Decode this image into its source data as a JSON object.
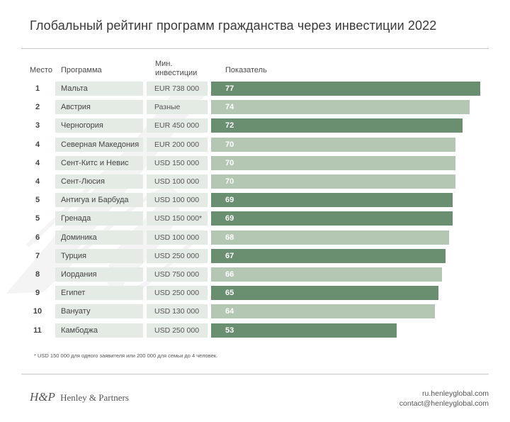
{
  "title": "Глобальный рейтинг программ гражданства через инвестиции 2022",
  "headers": {
    "rank": "Место",
    "program": "Программа",
    "investment": "Мин. инвестиции",
    "score": "Показатель"
  },
  "colors": {
    "bar_dark": "#6a8e70",
    "bar_light": "#b3c7b2",
    "cell_bg": "#e4eae4"
  },
  "chart_data": {
    "type": "bar",
    "title": "Глобальный рейтинг программ гражданства через инвестиции 2022",
    "xlabel": "Показатель",
    "ylabel": "Программа",
    "xlim": [
      0,
      80
    ],
    "rows": [
      {
        "rank": "1",
        "program": "Мальта",
        "investment": "EUR 738 000",
        "value": 77,
        "shade": "dark"
      },
      {
        "rank": "2",
        "program": "Австрия",
        "investment": "Разные",
        "value": 74,
        "shade": "light"
      },
      {
        "rank": "3",
        "program": "Черногория",
        "investment": "EUR 450 000",
        "value": 72,
        "shade": "dark"
      },
      {
        "rank": "4",
        "program": "Северная Македония",
        "investment": "EUR 200 000",
        "value": 70,
        "shade": "light"
      },
      {
        "rank": "4",
        "program": "Сент-Китс и Невис",
        "investment": "USD 150 000",
        "value": 70,
        "shade": "light"
      },
      {
        "rank": "4",
        "program": "Сент-Люсия",
        "investment": "USD 100 000",
        "value": 70,
        "shade": "light"
      },
      {
        "rank": "5",
        "program": "Антигуа и Барбуда",
        "investment": "USD 100 000",
        "value": 69,
        "shade": "dark"
      },
      {
        "rank": "5",
        "program": "Гренада",
        "investment": "USD 150 000*",
        "value": 69,
        "shade": "dark"
      },
      {
        "rank": "6",
        "program": "Доминика",
        "investment": "USD 100 000",
        "value": 68,
        "shade": "light"
      },
      {
        "rank": "7",
        "program": "Турция",
        "investment": "USD 250 000",
        "value": 67,
        "shade": "dark"
      },
      {
        "rank": "8",
        "program": "Иордания",
        "investment": "USD 750 000",
        "value": 66,
        "shade": "light"
      },
      {
        "rank": "9",
        "program": "Египет",
        "investment": "USD 250 000",
        "value": 65,
        "shade": "dark"
      },
      {
        "rank": "10",
        "program": "Вануату",
        "investment": "USD 130 000",
        "value": 64,
        "shade": "light"
      },
      {
        "rank": "11",
        "program": "Камбоджа",
        "investment": "USD 250 000",
        "value": 53,
        "shade": "dark"
      }
    ]
  },
  "footnote": "* USD 150 000 для одного заявителя или 200 000 для семьи до 4 человек.",
  "logo": {
    "mark": "H&P",
    "name": "Henley & Partners"
  },
  "contact": {
    "site": "ru.henleyglobal.com",
    "email": "contact@henleyglobal.com"
  }
}
